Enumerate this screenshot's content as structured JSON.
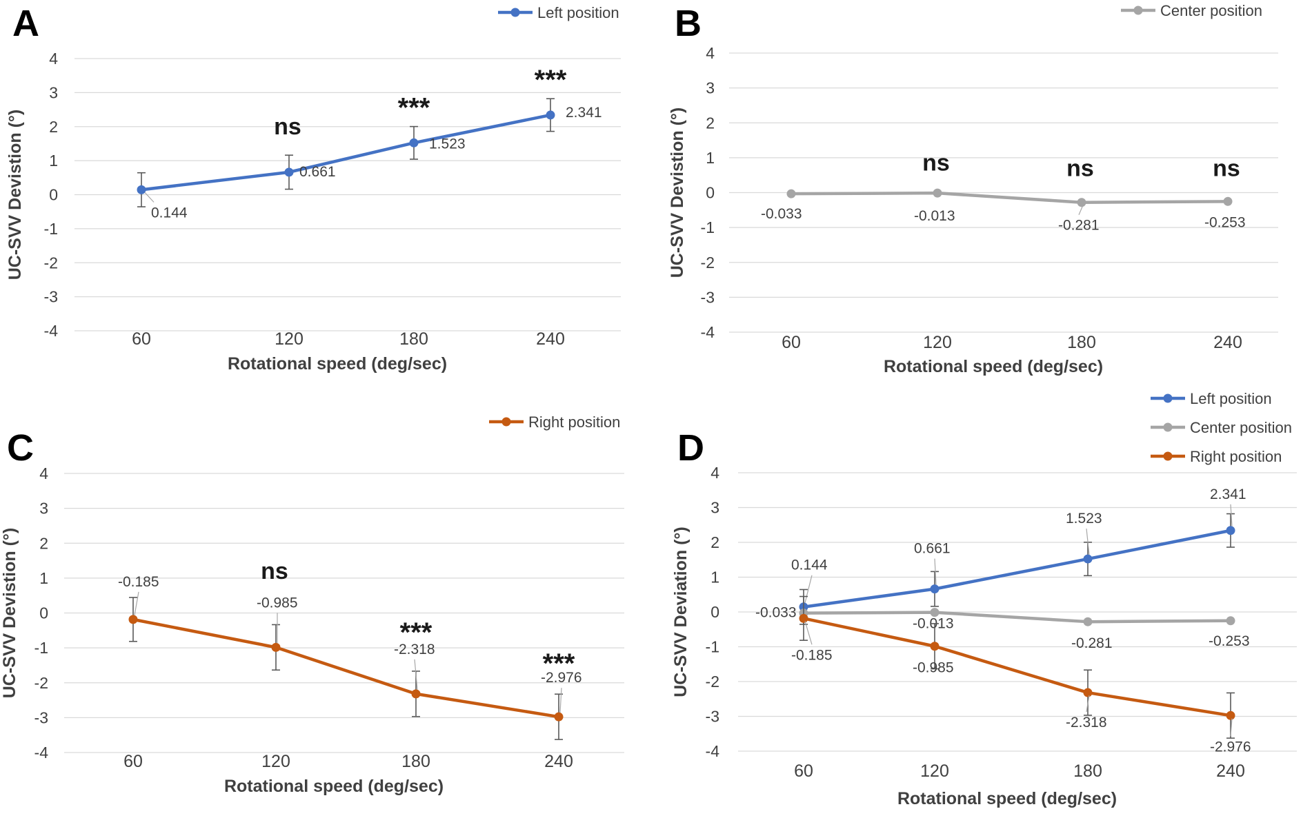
{
  "chart_data": [
    {
      "id": "A",
      "type": "line",
      "panel_label": "A",
      "ylabel": "UC-SVV Devistion (°)",
      "xlabel": "Rotational speed  (deg/sec)",
      "categories": [
        "60",
        "120",
        "180",
        "240"
      ],
      "ylim": [
        -4,
        4
      ],
      "y_ticks": [
        "4",
        "3",
        "2",
        "1",
        "0",
        "-1",
        "-2",
        "-3",
        "-4"
      ],
      "series": [
        {
          "name": "Left position",
          "color": "#4472C4",
          "values": [
            0.144,
            0.661,
            1.523,
            2.341
          ],
          "labels": [
            "0.144",
            "0.661",
            "1.523",
            "2.341"
          ],
          "error": [
            0.5,
            0.5,
            0.48,
            0.48
          ]
        }
      ],
      "significance": [
        "",
        "ns",
        "***",
        "***"
      ]
    },
    {
      "id": "B",
      "type": "line",
      "panel_label": "B",
      "ylabel": "UC-SVV Devistion (°)",
      "xlabel": "Rotational speed  (deg/sec)",
      "categories": [
        "60",
        "120",
        "180",
        "240"
      ],
      "ylim": [
        -4,
        4
      ],
      "y_ticks": [
        "4",
        "3",
        "2",
        "1",
        "0",
        "-1",
        "-2",
        "-3",
        "-4"
      ],
      "series": [
        {
          "name": "Center position",
          "color": "#A5A5A5",
          "values": [
            -0.033,
            -0.013,
            -0.281,
            -0.253
          ],
          "labels": [
            "-0.033",
            "-0.013",
            "-0.281",
            "-0.253"
          ],
          "error": [
            0,
            0,
            0,
            0
          ]
        }
      ],
      "significance": [
        "",
        "ns",
        "ns",
        "ns"
      ]
    },
    {
      "id": "C",
      "type": "line",
      "panel_label": "C",
      "ylabel": "UC-SVV Devistion (°)",
      "xlabel": "Rotational speed  (deg/sec)",
      "categories": [
        "60",
        "120",
        "180",
        "240"
      ],
      "ylim": [
        -4,
        4
      ],
      "y_ticks": [
        "4",
        "3",
        "2",
        "1",
        "0",
        "-1",
        "-2",
        "-3",
        "-4"
      ],
      "series": [
        {
          "name": "Right position",
          "color": "#C55A11",
          "values": [
            -0.185,
            -0.985,
            -2.318,
            -2.976
          ],
          "labels": [
            "-0.185",
            "-0.985",
            "-2.318",
            "-2.976"
          ],
          "error": [
            0.63,
            0.65,
            0.65,
            0.65
          ]
        }
      ],
      "significance": [
        "",
        "ns",
        "***",
        "***"
      ]
    },
    {
      "id": "D",
      "type": "line",
      "panel_label": "D",
      "ylabel": "UC-SVV  Deviation  (°)",
      "xlabel": "Rotational speed  (deg/sec)",
      "categories": [
        "60",
        "120",
        "180",
        "240"
      ],
      "ylim": [
        -4,
        4
      ],
      "y_ticks": [
        "4",
        "3",
        "2",
        "1",
        "0",
        "-1",
        "-2",
        "-3",
        "-4"
      ],
      "series": [
        {
          "name": "Left position",
          "color": "#4472C4",
          "values": [
            0.144,
            0.661,
            1.523,
            2.341
          ],
          "labels": [
            "0.144",
            "0.661",
            "1.523",
            "2.341"
          ],
          "error": [
            0.5,
            0.5,
            0.48,
            0.48
          ]
        },
        {
          "name": "Center position",
          "color": "#A5A5A5",
          "values": [
            -0.033,
            -0.013,
            -0.281,
            -0.253
          ],
          "labels": [
            "-0.033",
            "-0.013",
            "-0.281",
            "-0.253"
          ],
          "error": [
            0,
            0,
            0,
            0
          ]
        },
        {
          "name": "Right position",
          "color": "#C55A11",
          "values": [
            -0.185,
            -0.985,
            -2.318,
            -2.976
          ],
          "labels": [
            "-0.185",
            "-0.985",
            "-2.318",
            "-2.976"
          ],
          "error": [
            0.63,
            0.65,
            0.65,
            0.65
          ]
        }
      ],
      "significance": [
        "",
        "",
        "",
        ""
      ]
    }
  ]
}
